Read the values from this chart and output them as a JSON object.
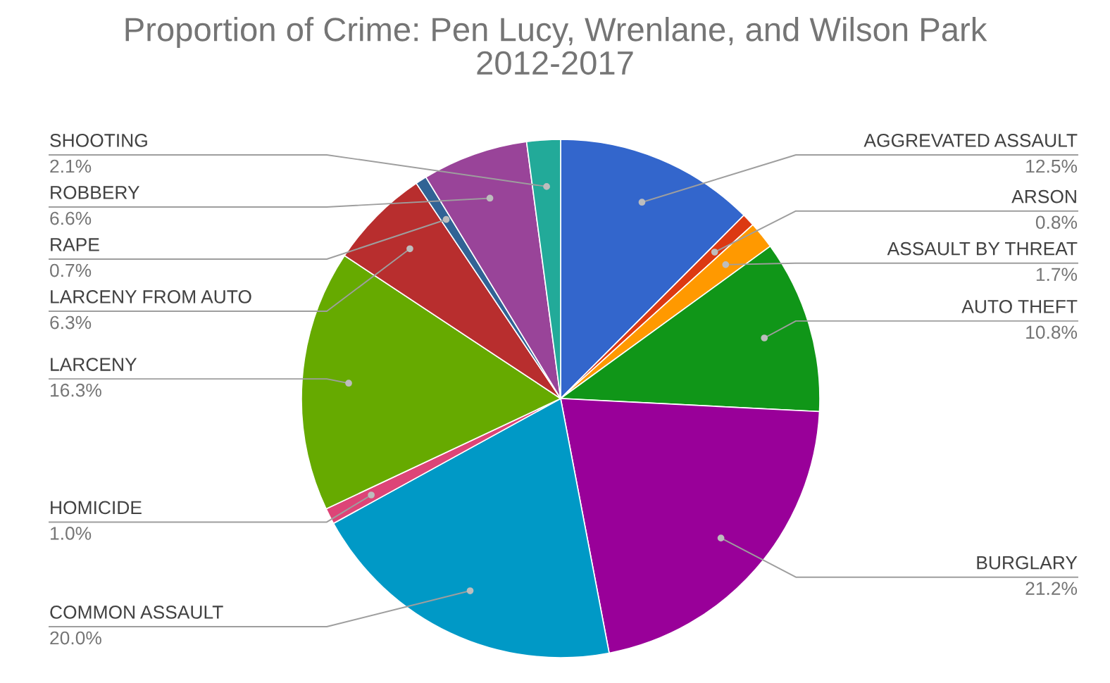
{
  "chart_data": {
    "type": "pie",
    "title": "Proportion of Crime: Pen Lucy, Wrenlane, and Wilson Park\n2012-2017",
    "categories": [
      "AGGREVATED ASSAULT",
      "ARSON",
      "ASSAULT BY THREAT",
      "AUTO THEFT",
      "BURGLARY",
      "COMMON ASSAULT",
      "HOMICIDE",
      "LARCENY",
      "LARCENY FROM AUTO",
      "RAPE",
      "ROBBERY",
      "SHOOTING"
    ],
    "values": [
      12.5,
      0.8,
      1.7,
      10.8,
      21.2,
      20.0,
      1.0,
      16.3,
      6.3,
      0.7,
      6.6,
      2.1
    ],
    "value_labels": [
      "12.5%",
      "0.8%",
      "1.7%",
      "10.8%",
      "21.2%",
      "20.0%",
      "1.0%",
      "16.3%",
      "6.3%",
      "0.7%",
      "6.6%",
      "2.1%"
    ],
    "colors": [
      "#3366cc",
      "#dc3912",
      "#ff9900",
      "#109618",
      "#990099",
      "#0099c6",
      "#dd4477",
      "#66aa00",
      "#b82e2e",
      "#316395",
      "#994499",
      "#22aa99"
    ],
    "legend": false
  }
}
